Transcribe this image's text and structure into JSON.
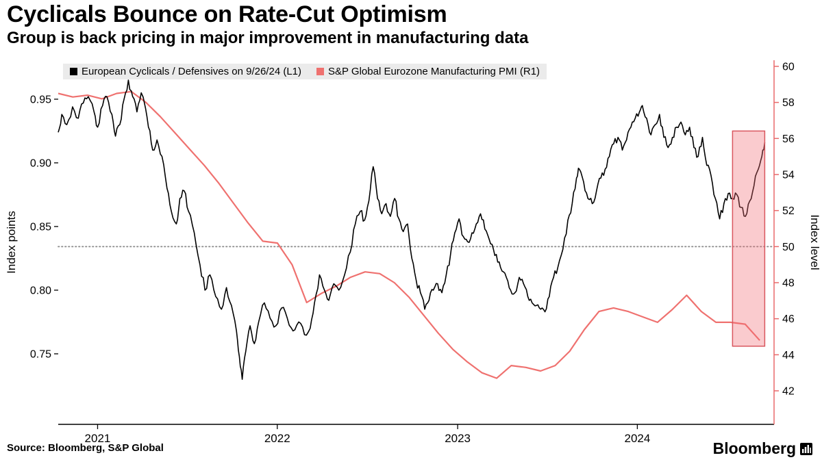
{
  "header": {
    "title": "Cyclicals Bounce on Rate-Cut Optimism",
    "subtitle": "Group is back pricing in major improvement in manufacturing data"
  },
  "footer": {
    "source": "Source: Bloomberg, S&P Global",
    "brand": "Bloomberg"
  },
  "legend": [
    {
      "label": "European Cyclicals / Defensives on 9/26/24 (L1)",
      "color": "#000000"
    },
    {
      "label": "S&P Global Eurozone Manufacturing PMI (R1)",
      "color": "#ef716f"
    }
  ],
  "chart_data": {
    "type": "line",
    "title": "Cyclicals Bounce on Rate-Cut Optimism",
    "subtitle": "Group is back pricing in major improvement in manufacturing data",
    "grid": "off",
    "legend_position": "top-left",
    "left_axis": {
      "label": "Index points",
      "min": 0.6946,
      "max": 0.9806,
      "ticks": [
        {
          "v": 0.95,
          "label": "0.95"
        },
        {
          "v": 0.9,
          "label": "0.90"
        },
        {
          "v": 0.85,
          "label": "0.85"
        },
        {
          "v": 0.8,
          "label": "0.80"
        },
        {
          "v": 0.75,
          "label": "0.75"
        }
      ]
    },
    "right_axis": {
      "label": "Index level",
      "min": 40.14,
      "max": 60.34,
      "color": "#e8696a",
      "ticks": [
        {
          "v": 60,
          "label": "60"
        },
        {
          "v": 58,
          "label": "58"
        },
        {
          "v": 56,
          "label": "56"
        },
        {
          "v": 54,
          "label": "54"
        },
        {
          "v": 52,
          "label": "52"
        },
        {
          "v": 50,
          "label": "50"
        },
        {
          "v": 48,
          "label": "48"
        },
        {
          "v": 46,
          "label": "46"
        },
        {
          "v": 44,
          "label": "44"
        },
        {
          "v": 42,
          "label": "42"
        }
      ]
    },
    "x_axis": {
      "labels": [
        "2021",
        "2022",
        "2023",
        "2024"
      ],
      "fracs": [
        0.055,
        0.306,
        0.558,
        0.809
      ]
    },
    "reference_line": {
      "axis": "right",
      "value": 50,
      "color": "#8f8f8f",
      "style": "dotted"
    },
    "highlight_box": {
      "axis": "left",
      "x0f": 0.942,
      "x1f": 0.987,
      "top": 0.925,
      "bottom": 0.756,
      "fill": "#f26a74",
      "fill_opacity": 0.35,
      "stroke": "#d9565e"
    },
    "series": [
      {
        "name": "European Cyclicals / Defensives on 9/26/24 (L1)",
        "axis": "left",
        "color": "#000000",
        "width": 1.6,
        "jitter": 0.0033,
        "jitter_seed": 42,
        "points": [
          [
            0.0,
            0.924
          ],
          [
            0.005,
            0.938
          ],
          [
            0.012,
            0.93
          ],
          [
            0.02,
            0.944
          ],
          [
            0.028,
            0.935
          ],
          [
            0.035,
            0.947
          ],
          [
            0.042,
            0.952
          ],
          [
            0.05,
            0.94
          ],
          [
            0.055,
            0.928
          ],
          [
            0.062,
            0.945
          ],
          [
            0.068,
            0.952
          ],
          [
            0.075,
            0.938
          ],
          [
            0.08,
            0.921
          ],
          [
            0.086,
            0.93
          ],
          [
            0.092,
            0.95
          ],
          [
            0.098,
            0.965
          ],
          [
            0.104,
            0.952
          ],
          [
            0.11,
            0.94
          ],
          [
            0.116,
            0.955
          ],
          [
            0.12,
            0.948
          ],
          [
            0.126,
            0.928
          ],
          [
            0.132,
            0.91
          ],
          [
            0.138,
            0.918
          ],
          [
            0.145,
            0.905
          ],
          [
            0.152,
            0.88
          ],
          [
            0.158,
            0.862
          ],
          [
            0.165,
            0.852
          ],
          [
            0.17,
            0.872
          ],
          [
            0.176,
            0.878
          ],
          [
            0.182,
            0.862
          ],
          [
            0.19,
            0.845
          ],
          [
            0.198,
            0.82
          ],
          [
            0.205,
            0.8
          ],
          [
            0.212,
            0.812
          ],
          [
            0.22,
            0.795
          ],
          [
            0.228,
            0.785
          ],
          [
            0.235,
            0.802
          ],
          [
            0.242,
            0.788
          ],
          [
            0.249,
            0.768
          ],
          [
            0.253,
            0.748
          ],
          [
            0.257,
            0.73
          ],
          [
            0.262,
            0.752
          ],
          [
            0.268,
            0.772
          ],
          [
            0.274,
            0.758
          ],
          [
            0.28,
            0.775
          ],
          [
            0.288,
            0.79
          ],
          [
            0.296,
            0.778
          ],
          [
            0.304,
            0.772
          ],
          [
            0.312,
            0.786
          ],
          [
            0.32,
            0.778
          ],
          [
            0.328,
            0.768
          ],
          [
            0.336,
            0.775
          ],
          [
            0.344,
            0.765
          ],
          [
            0.352,
            0.77
          ],
          [
            0.358,
            0.79
          ],
          [
            0.365,
            0.812
          ],
          [
            0.372,
            0.8
          ],
          [
            0.378,
            0.792
          ],
          [
            0.385,
            0.805
          ],
          [
            0.392,
            0.8
          ],
          [
            0.4,
            0.812
          ],
          [
            0.408,
            0.83
          ],
          [
            0.415,
            0.852
          ],
          [
            0.422,
            0.862
          ],
          [
            0.428,
            0.855
          ],
          [
            0.434,
            0.87
          ],
          [
            0.44,
            0.897
          ],
          [
            0.446,
            0.872
          ],
          [
            0.452,
            0.86
          ],
          [
            0.458,
            0.868
          ],
          [
            0.464,
            0.858
          ],
          [
            0.47,
            0.872
          ],
          [
            0.476,
            0.856
          ],
          [
            0.482,
            0.846
          ],
          [
            0.488,
            0.852
          ],
          [
            0.494,
            0.825
          ],
          [
            0.5,
            0.808
          ],
          [
            0.506,
            0.798
          ],
          [
            0.512,
            0.785
          ],
          [
            0.518,
            0.792
          ],
          [
            0.524,
            0.8
          ],
          [
            0.53,
            0.805
          ],
          [
            0.536,
            0.798
          ],
          [
            0.542,
            0.812
          ],
          [
            0.548,
            0.828
          ],
          [
            0.554,
            0.845
          ],
          [
            0.56,
            0.856
          ],
          [
            0.566,
            0.842
          ],
          [
            0.572,
            0.838
          ],
          [
            0.578,
            0.845
          ],
          [
            0.584,
            0.852
          ],
          [
            0.59,
            0.86
          ],
          [
            0.596,
            0.848
          ],
          [
            0.602,
            0.84
          ],
          [
            0.608,
            0.832
          ],
          [
            0.614,
            0.822
          ],
          [
            0.62,
            0.815
          ],
          [
            0.626,
            0.81
          ],
          [
            0.632,
            0.8
          ],
          [
            0.638,
            0.798
          ],
          [
            0.644,
            0.81
          ],
          [
            0.65,
            0.805
          ],
          [
            0.656,
            0.795
          ],
          [
            0.662,
            0.79
          ],
          [
            0.668,
            0.788
          ],
          [
            0.674,
            0.785
          ],
          [
            0.68,
            0.783
          ],
          [
            0.686,
            0.795
          ],
          [
            0.692,
            0.81
          ],
          [
            0.698,
            0.818
          ],
          [
            0.705,
            0.832
          ],
          [
            0.712,
            0.855
          ],
          [
            0.718,
            0.868
          ],
          [
            0.724,
            0.888
          ],
          [
            0.728,
            0.895
          ],
          [
            0.734,
            0.885
          ],
          [
            0.74,
            0.872
          ],
          [
            0.746,
            0.868
          ],
          [
            0.752,
            0.878
          ],
          [
            0.758,
            0.888
          ],
          [
            0.764,
            0.895
          ],
          [
            0.77,
            0.905
          ],
          [
            0.776,
            0.915
          ],
          [
            0.782,
            0.92
          ],
          [
            0.788,
            0.91
          ],
          [
            0.794,
            0.918
          ],
          [
            0.8,
            0.928
          ],
          [
            0.806,
            0.935
          ],
          [
            0.812,
            0.94
          ],
          [
            0.816,
            0.945
          ],
          [
            0.822,
            0.935
          ],
          [
            0.828,
            0.922
          ],
          [
            0.834,
            0.93
          ],
          [
            0.84,
            0.938
          ],
          [
            0.846,
            0.92
          ],
          [
            0.852,
            0.912
          ],
          [
            0.858,
            0.92
          ],
          [
            0.864,
            0.928
          ],
          [
            0.87,
            0.932
          ],
          [
            0.876,
            0.922
          ],
          [
            0.882,
            0.928
          ],
          [
            0.888,
            0.912
          ],
          [
            0.894,
            0.905
          ],
          [
            0.9,
            0.92
          ],
          [
            0.906,
            0.898
          ],
          [
            0.912,
            0.89
          ],
          [
            0.918,
            0.872
          ],
          [
            0.924,
            0.856
          ],
          [
            0.93,
            0.868
          ],
          [
            0.936,
            0.876
          ],
          [
            0.942,
            0.872
          ],
          [
            0.948,
            0.875
          ],
          [
            0.954,
            0.865
          ],
          [
            0.96,
            0.858
          ],
          [
            0.966,
            0.87
          ],
          [
            0.972,
            0.882
          ],
          [
            0.978,
            0.895
          ],
          [
            0.983,
            0.905
          ],
          [
            0.987,
            0.916
          ]
        ]
      },
      {
        "name": "S&P Global Eurozone Manufacturing PMI (R1)",
        "axis": "right",
        "color": "#ef716f",
        "width": 2.2,
        "f_start": 0.0,
        "f_end": 0.98,
        "values": [
          58.5,
          58.3,
          58.4,
          58.2,
          58.5,
          58.6,
          58.0,
          57.2,
          56.3,
          55.4,
          54.5,
          53.5,
          52.4,
          51.3,
          50.3,
          50.2,
          49.0,
          46.9,
          47.4,
          47.8,
          48.3,
          48.6,
          48.5,
          48.0,
          47.2,
          46.2,
          45.2,
          44.3,
          43.6,
          43.0,
          42.7,
          43.4,
          43.3,
          43.1,
          43.4,
          44.2,
          45.4,
          46.4,
          46.6,
          46.4,
          46.1,
          45.8,
          46.5,
          47.3,
          46.4,
          45.8,
          45.8,
          45.7,
          44.8
        ]
      }
    ]
  }
}
